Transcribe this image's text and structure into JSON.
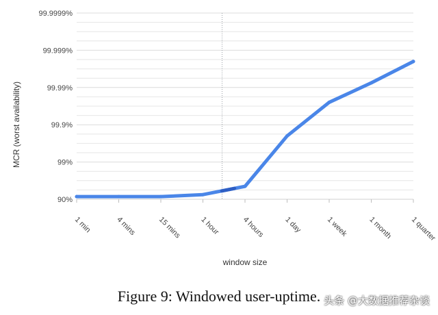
{
  "chart_data": {
    "type": "line",
    "title": "",
    "xlabel": "window size",
    "ylabel": "MCR (worst availability)",
    "categories": [
      "1 min",
      "4 mins",
      "15 mins",
      "1 hour",
      "4 hours",
      "1 day",
      "1 week",
      "1 month",
      "1 quarter"
    ],
    "y_tick_labels": [
      "90%",
      "99%",
      "99.9%",
      "99.99%",
      "99.999%",
      "99.9999%"
    ],
    "y_scale": "nines",
    "ylim": [
      "90%",
      "99.9999%"
    ],
    "grid": true,
    "legend": "none",
    "series": [
      {
        "values": [
          {
            "x": "1 min",
            "y": "91.5%"
          },
          {
            "x": "4 mins",
            "y": "91.5%"
          },
          {
            "x": "15 mins",
            "y": "91.5%"
          },
          {
            "x": "1 hour",
            "y": "92.5%"
          },
          {
            "x": "4 hours",
            "y": "95.5%"
          },
          {
            "x": "1 day",
            "y": "99.8%"
          },
          {
            "x": "1 week",
            "y": "99.975%"
          },
          {
            "x": "1 month",
            "y": "99.9925%"
          },
          {
            "x": "1 quarter",
            "y": "99.998%"
          }
        ]
      }
    ],
    "marker_line_x": "1 hour",
    "colors": {
      "line": "#4a86e8",
      "line_highlight": "#2f5fc4",
      "grid": "#e6e6e6",
      "marker_line": "#9aa0a6"
    }
  },
  "caption": "Figure 9: Windowed user-uptime.",
  "watermark": "头条 @大数据推荐杂谈"
}
